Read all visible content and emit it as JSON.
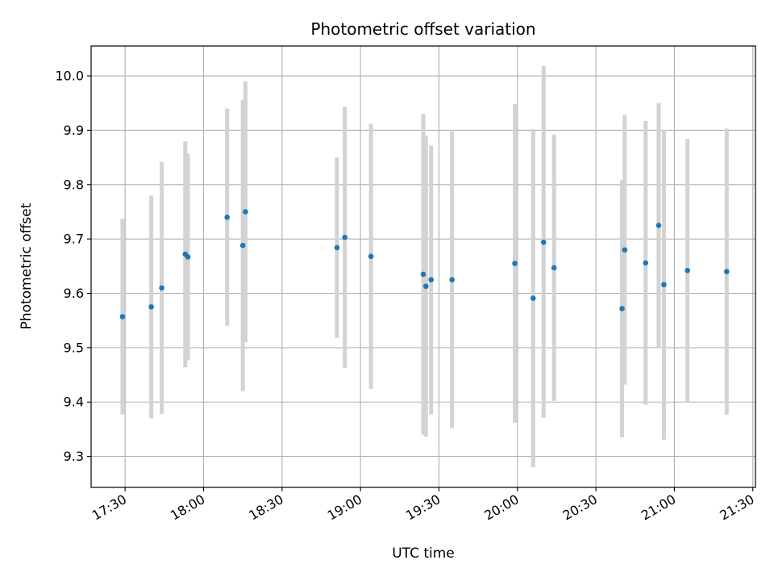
{
  "chart_data": {
    "type": "scatter",
    "title": "Photometric offset variation",
    "xlabel": "UTC time",
    "ylabel": "Photometric offset",
    "x_tick_labels": [
      "17:30",
      "18:00",
      "18:30",
      "19:00",
      "19:30",
      "20:00",
      "20:30",
      "21:00",
      "21:30"
    ],
    "y_tick_labels": [
      "9.3",
      "9.4",
      "9.5",
      "9.6",
      "9.7",
      "9.8",
      "9.9",
      "10.0"
    ],
    "xlim": [
      "17:17",
      "21:31"
    ],
    "ylim": [
      9.243,
      10.055
    ],
    "grid": true,
    "marker_color": "#1f77b4",
    "errorbar_color": "#d3d3d3",
    "points": [
      {
        "time": "17:29",
        "y": 9.557,
        "ylo": 9.377,
        "yhi": 9.737
      },
      {
        "time": "17:40",
        "y": 9.575,
        "ylo": 9.37,
        "yhi": 9.78
      },
      {
        "time": "17:44",
        "y": 9.61,
        "ylo": 9.378,
        "yhi": 9.842
      },
      {
        "time": "17:53",
        "y": 9.672,
        "ylo": 9.464,
        "yhi": 9.88
      },
      {
        "time": "17:54",
        "y": 9.667,
        "ylo": 9.477,
        "yhi": 9.857
      },
      {
        "time": "18:09",
        "y": 9.74,
        "ylo": 9.54,
        "yhi": 9.94
      },
      {
        "time": "18:15",
        "y": 9.688,
        "ylo": 9.42,
        "yhi": 9.956
      },
      {
        "time": "18:16",
        "y": 9.75,
        "ylo": 9.51,
        "yhi": 9.99
      },
      {
        "time": "18:51",
        "y": 9.684,
        "ylo": 9.518,
        "yhi": 9.85
      },
      {
        "time": "18:54",
        "y": 9.703,
        "ylo": 9.463,
        "yhi": 9.943
      },
      {
        "time": "19:04",
        "y": 9.668,
        "ylo": 9.424,
        "yhi": 9.912
      },
      {
        "time": "19:24",
        "y": 9.635,
        "ylo": 9.34,
        "yhi": 9.93
      },
      {
        "time": "19:25",
        "y": 9.613,
        "ylo": 9.336,
        "yhi": 9.89
      },
      {
        "time": "19:27",
        "y": 9.625,
        "ylo": 9.377,
        "yhi": 9.872
      },
      {
        "time": "19:35",
        "y": 9.625,
        "ylo": 9.352,
        "yhi": 9.898
      },
      {
        "time": "19:59",
        "y": 9.655,
        "ylo": 9.362,
        "yhi": 9.948
      },
      {
        "time": "20:06",
        "y": 9.591,
        "ylo": 9.28,
        "yhi": 9.902
      },
      {
        "time": "20:10",
        "y": 9.694,
        "ylo": 9.371,
        "yhi": 10.018
      },
      {
        "time": "20:14",
        "y": 9.647,
        "ylo": 9.402,
        "yhi": 9.892
      },
      {
        "time": "20:40",
        "y": 9.572,
        "ylo": 9.335,
        "yhi": 9.809
      },
      {
        "time": "20:41",
        "y": 9.68,
        "ylo": 9.432,
        "yhi": 9.928
      },
      {
        "time": "20:49",
        "y": 9.656,
        "ylo": 9.395,
        "yhi": 9.917
      },
      {
        "time": "20:54",
        "y": 9.725,
        "ylo": 9.5,
        "yhi": 9.95
      },
      {
        "time": "20:56",
        "y": 9.616,
        "ylo": 9.331,
        "yhi": 9.901
      },
      {
        "time": "21:05",
        "y": 9.642,
        "ylo": 9.4,
        "yhi": 9.884
      },
      {
        "time": "21:20",
        "y": 9.64,
        "ylo": 9.377,
        "yhi": 9.903
      }
    ]
  }
}
